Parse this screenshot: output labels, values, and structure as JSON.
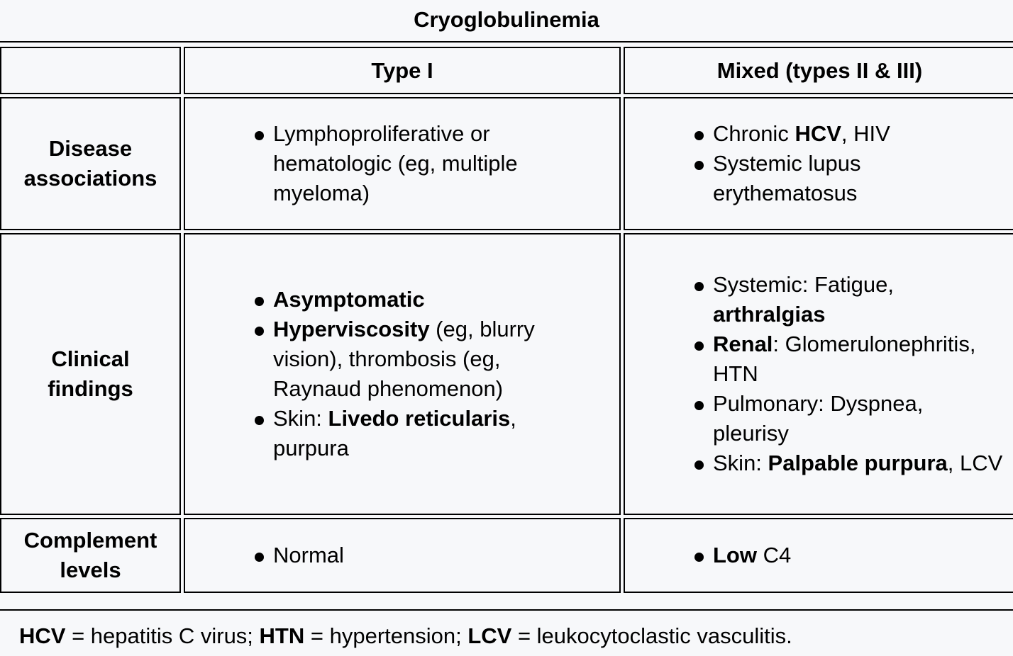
{
  "title": "Cryoglobulinemia",
  "headers": {
    "empty": "",
    "type1": "Type I",
    "mixed": "Mixed (types II & III)"
  },
  "rows": {
    "disease": {
      "label": [
        "Disease",
        "associations"
      ],
      "type1": [
        {
          "text": "Lymphoproliferative or hematologic (eg, multiple myeloma)"
        }
      ],
      "mixed": [
        {
          "pre": "Chronic ",
          "bold": "HCV",
          "post": ", HIV"
        },
        {
          "text": "Systemic lupus erythematosus"
        }
      ]
    },
    "clinical": {
      "label": [
        "Clinical",
        "findings"
      ],
      "type1": [
        {
          "bold": "Asymptomatic"
        },
        {
          "bold": "Hyperviscosity",
          "post": " (eg, blurry vision), thrombosis (eg, Raynaud phenomenon)"
        },
        {
          "pre": "Skin: ",
          "bold": "Livedo reticularis",
          "post": ", purpura"
        }
      ],
      "mixed": [
        {
          "pre": "Systemic: Fatigue, ",
          "bold": "arthralgias"
        },
        {
          "bold": "Renal",
          "post": ": Glomerulonephritis, HTN"
        },
        {
          "text": "Pulmonary: Dyspnea, pleurisy"
        },
        {
          "pre": "Skin: ",
          "bold": "Palpable purpura",
          "post": ", LCV"
        }
      ]
    },
    "complement": {
      "label": [
        "Complement",
        "levels"
      ],
      "type1": [
        {
          "text": "Normal"
        }
      ],
      "mixed": [
        {
          "bold": "Low",
          "post": " C4"
        }
      ]
    }
  },
  "footnote": [
    {
      "bold": "HCV",
      "text": " = hepatitis C virus; "
    },
    {
      "bold": "HTN",
      "text": " = hypertension; "
    },
    {
      "bold": "LCV",
      "text": " = leukocytoclastic vasculitis."
    }
  ]
}
